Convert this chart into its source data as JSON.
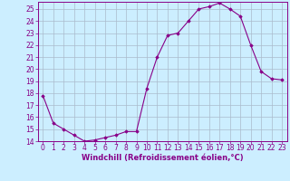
{
  "x": [
    0,
    1,
    2,
    3,
    4,
    5,
    6,
    7,
    8,
    9,
    10,
    11,
    12,
    13,
    14,
    15,
    16,
    17,
    18,
    19,
    20,
    21,
    22,
    23
  ],
  "y": [
    17.8,
    15.5,
    15.0,
    14.5,
    14.0,
    14.1,
    14.3,
    14.5,
    14.8,
    14.8,
    18.4,
    21.0,
    22.8,
    23.0,
    24.0,
    25.0,
    25.2,
    25.5,
    25.0,
    24.4,
    22.0,
    19.8,
    19.2,
    19.1
  ],
  "line_color": "#880088",
  "marker": "D",
  "marker_size": 1.8,
  "bg_color": "#cceeff",
  "grid_color": "#aabbcc",
  "xlabel": "Windchill (Refroidissement éolien,°C)",
  "xlabel_color": "#880088",
  "tick_color": "#880088",
  "spine_color": "#880088",
  "ylim": [
    14,
    25.6
  ],
  "xlim": [
    -0.5,
    23.5
  ],
  "yticks": [
    14,
    15,
    16,
    17,
    18,
    19,
    20,
    21,
    22,
    23,
    24,
    25
  ],
  "xticks": [
    0,
    1,
    2,
    3,
    4,
    5,
    6,
    7,
    8,
    9,
    10,
    11,
    12,
    13,
    14,
    15,
    16,
    17,
    18,
    19,
    20,
    21,
    22,
    23
  ],
  "xlabel_fontsize": 6.0,
  "tick_fontsize": 5.5,
  "linewidth": 0.8
}
